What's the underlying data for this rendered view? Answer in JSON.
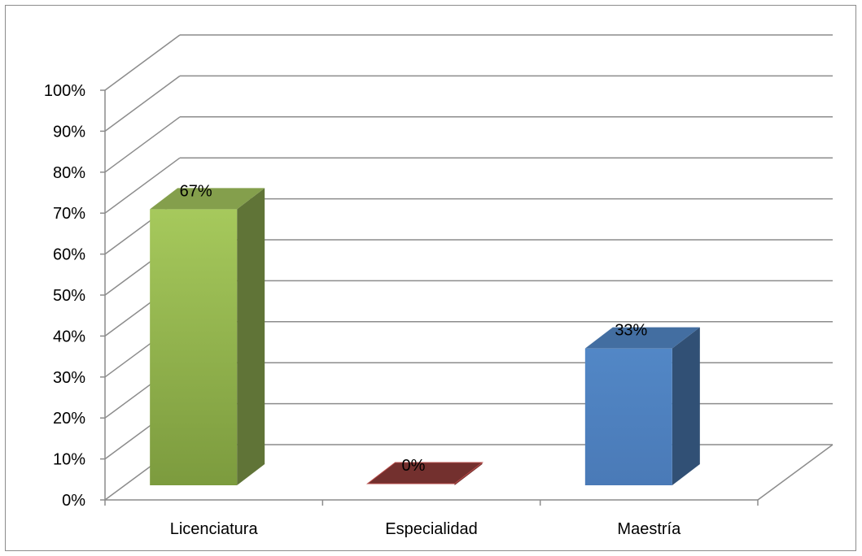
{
  "chart_data": {
    "type": "bar",
    "style": "3d-clustered-column",
    "categories": [
      "Licenciatura",
      "Especialidad",
      "Maestría"
    ],
    "values": [
      67,
      0,
      33
    ],
    "data_labels": [
      "67%",
      "0%",
      "33%"
    ],
    "ylim": [
      0,
      100
    ],
    "yticks": [
      0,
      10,
      20,
      30,
      40,
      50,
      60,
      70,
      80,
      90,
      100
    ],
    "ytick_labels": [
      "0%",
      "10%",
      "20%",
      "30%",
      "40%",
      "50%",
      "60%",
      "70%",
      "80%",
      "90%",
      "100%"
    ],
    "grid": true,
    "legend": "none",
    "colors": {
      "bars": [
        "#9bbb59",
        "#c0504d",
        "#4f81bd"
      ],
      "gridline": "#8c8c8c",
      "border": "#8c8c8c"
    }
  }
}
